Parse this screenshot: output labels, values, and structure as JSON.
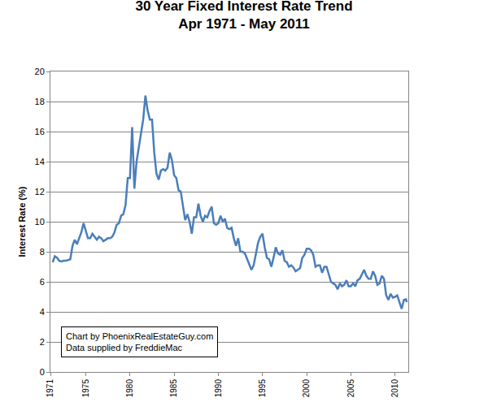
{
  "chart_data": {
    "type": "line",
    "title": "30 Year Fixed Interest Rate Trend",
    "subtitle": "Apr 1971 - May 2011",
    "y_label": "Interest Rate (%)",
    "annotations": [
      "Chart by PhoenixRealEstateGuy.com",
      "Data supplied by FreddieMac"
    ],
    "x": [
      1971.25,
      1971.5,
      1971.75,
      1972,
      1972.25,
      1972.5,
      1972.75,
      1973,
      1973.25,
      1973.5,
      1973.75,
      1974,
      1974.25,
      1974.5,
      1974.75,
      1975,
      1975.25,
      1975.5,
      1975.75,
      1976,
      1976.25,
      1976.5,
      1976.75,
      1977,
      1977.25,
      1977.5,
      1977.75,
      1978,
      1978.25,
      1978.5,
      1978.75,
      1979,
      1979.25,
      1979.5,
      1979.75,
      1980,
      1980.25,
      1980.5,
      1980.75,
      1981,
      1981.25,
      1981.5,
      1981.75,
      1982,
      1982.25,
      1982.5,
      1982.75,
      1983,
      1983.25,
      1983.5,
      1983.75,
      1984,
      1984.25,
      1984.5,
      1984.75,
      1985,
      1985.25,
      1985.5,
      1985.75,
      1986,
      1986.25,
      1986.5,
      1986.75,
      1987,
      1987.25,
      1987.5,
      1987.75,
      1988,
      1988.25,
      1988.5,
      1988.75,
      1989,
      1989.25,
      1989.5,
      1989.75,
      1990,
      1990.25,
      1990.5,
      1990.75,
      1991,
      1991.25,
      1991.5,
      1991.75,
      1992,
      1992.25,
      1992.5,
      1992.75,
      1993,
      1993.25,
      1993.5,
      1993.75,
      1994,
      1994.25,
      1994.5,
      1994.75,
      1995,
      1995.25,
      1995.5,
      1995.75,
      1996,
      1996.25,
      1996.5,
      1996.75,
      1997,
      1997.25,
      1997.5,
      1997.75,
      1998,
      1998.25,
      1998.5,
      1998.75,
      1999,
      1999.25,
      1999.5,
      1999.75,
      2000,
      2000.25,
      2000.5,
      2000.75,
      2001,
      2001.25,
      2001.5,
      2001.75,
      2002,
      2002.25,
      2002.5,
      2002.75,
      2003,
      2003.25,
      2003.5,
      2003.75,
      2004,
      2004.25,
      2004.5,
      2004.75,
      2005,
      2005.25,
      2005.5,
      2005.75,
      2006,
      2006.25,
      2006.5,
      2006.75,
      2007,
      2007.25,
      2007.5,
      2007.75,
      2008,
      2008.25,
      2008.5,
      2008.75,
      2009,
      2009.25,
      2009.5,
      2009.75,
      2010,
      2010.25,
      2010.5,
      2010.75,
      2011,
      2011.25,
      2011.33
    ],
    "values": [
      7.3,
      7.7,
      7.6,
      7.4,
      7.35,
      7.4,
      7.4,
      7.45,
      7.5,
      8.4,
      8.8,
      8.5,
      8.9,
      9.3,
      9.9,
      9.4,
      8.9,
      8.9,
      9.2,
      9.0,
      8.8,
      9.0,
      8.9,
      8.7,
      8.8,
      8.9,
      8.9,
      9.0,
      9.3,
      9.8,
      9.9,
      10.4,
      10.5,
      11.1,
      12.9,
      12.9,
      16.3,
      12.2,
      14.0,
      14.9,
      15.9,
      16.8,
      18.4,
      17.4,
      16.8,
      16.8,
      14.6,
      13.2,
      12.8,
      13.4,
      13.5,
      13.4,
      13.6,
      14.6,
      14.1,
      13.1,
      12.9,
      12.1,
      12.0,
      10.9,
      10.1,
      10.5,
      10.0,
      9.2,
      10.3,
      10.3,
      11.2,
      10.4,
      10.0,
      10.4,
      10.3,
      10.7,
      11.0,
      9.9,
      9.8,
      9.9,
      10.4,
      10.0,
      10.2,
      9.6,
      9.5,
      9.6,
      8.9,
      8.4,
      8.9,
      8.0,
      8.0,
      7.9,
      7.5,
      7.2,
      6.8,
      7.1,
      7.9,
      8.6,
      9.0,
      9.2,
      8.3,
      7.6,
      7.5,
      7.0,
      7.6,
      8.3,
      7.9,
      7.8,
      8.1,
      7.4,
      7.3,
      7.0,
      7.1,
      6.95,
      6.7,
      6.8,
      6.9,
      7.6,
      7.8,
      8.2,
      8.2,
      8.1,
      7.8,
      7.0,
      7.1,
      7.1,
      6.6,
      7.0,
      7.0,
      6.5,
      6.0,
      5.9,
      5.8,
      5.5,
      5.9,
      5.7,
      5.8,
      6.1,
      5.7,
      5.7,
      5.9,
      5.7,
      6.1,
      6.2,
      6.5,
      6.8,
      6.4,
      6.2,
      6.2,
      6.7,
      6.4,
      5.8,
      5.9,
      6.4,
      6.2,
      5.1,
      4.8,
      5.2,
      4.95,
      5.0,
      5.1,
      4.6,
      4.2,
      4.8,
      4.84,
      4.64
    ],
    "color": "#4a7ebb",
    "xlim": [
      1971,
      2011.5
    ],
    "xticks": [
      1971,
      1975,
      1980,
      1985,
      1990,
      1995,
      2000,
      2005,
      2010
    ],
    "ylim": [
      0,
      20
    ],
    "yticks": [
      0,
      2,
      4,
      6,
      8,
      10,
      12,
      14,
      16,
      18,
      20
    ],
    "grid": true
  }
}
